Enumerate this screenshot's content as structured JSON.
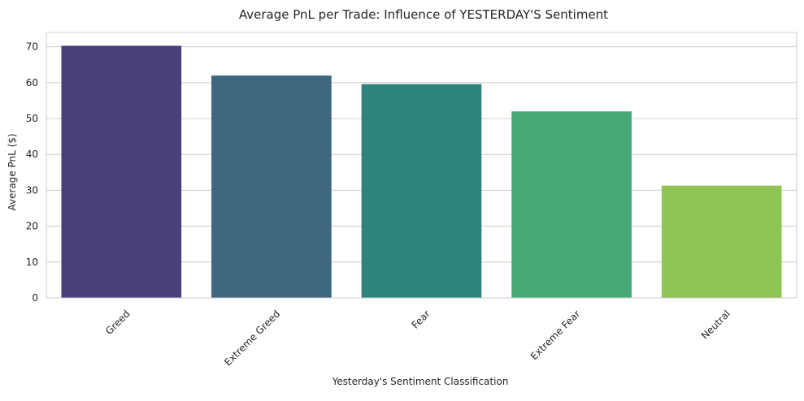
{
  "chart_data": {
    "type": "bar",
    "title": "Average PnL per Trade: Influence of YESTERDAY'S Sentiment",
    "xlabel": "Yesterday's Sentiment Classification",
    "ylabel": "Average PnL ($)",
    "categories": [
      "Greed",
      "Extreme Greed",
      "Fear",
      "Extreme Fear",
      "Neutral"
    ],
    "values": [
      70.3,
      62.0,
      59.6,
      52.0,
      31.3
    ],
    "colors": [
      "#4a3f7a",
      "#3e6780",
      "#2f837d",
      "#47a878",
      "#8fc555"
    ],
    "ylim": [
      0,
      74
    ],
    "yticks": [
      0,
      10,
      20,
      30,
      40,
      50,
      60,
      70
    ],
    "grid": "horizontal",
    "legend": "none"
  }
}
